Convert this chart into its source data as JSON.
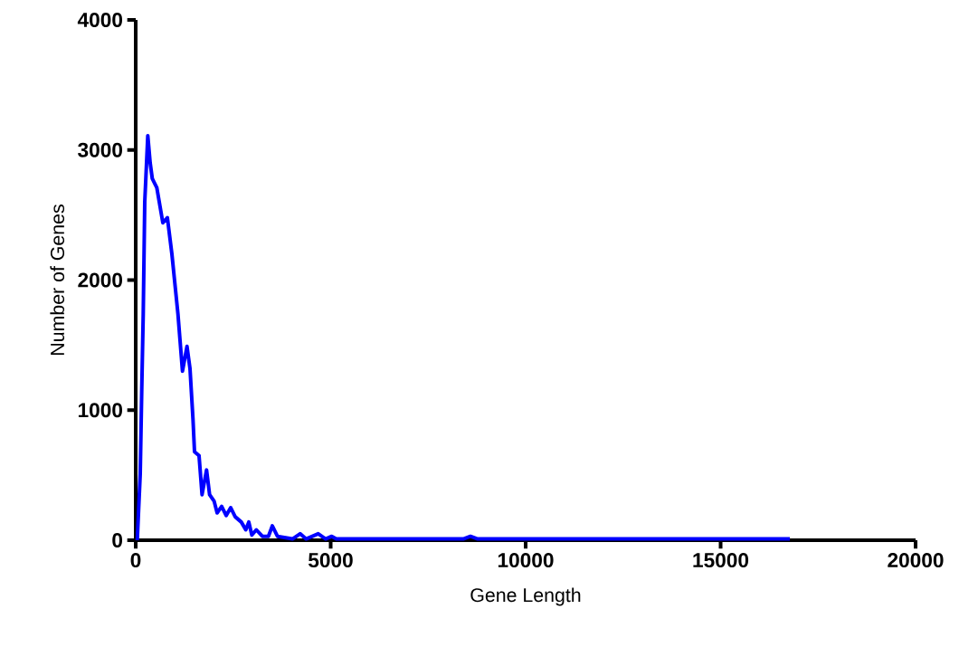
{
  "chart_data": {
    "type": "line",
    "xlabel": "Gene Length",
    "ylabel": "Number of Genes",
    "xlim": [
      0,
      20000
    ],
    "ylim": [
      0,
      4000
    ],
    "xticks": [
      0,
      5000,
      10000,
      15000,
      20000
    ],
    "yticks": [
      0,
      1000,
      2000,
      3000,
      4000
    ],
    "grid": false,
    "marker": "none",
    "line_style": "solid",
    "series": [
      {
        "color": "#0000ff",
        "x": [
          40,
          116,
          155,
          193,
          232,
          310,
          371,
          425,
          541,
          696,
          812,
          928,
          1083,
          1199,
          1315,
          1392,
          1469,
          1508,
          1624,
          1701,
          1817,
          1895,
          2011,
          2088,
          2204,
          2320,
          2436,
          2552,
          2707,
          2823,
          2900,
          2978,
          3093,
          3248,
          3403,
          3503,
          3635,
          4021,
          4216,
          4369,
          4680,
          4872,
          5027,
          5143,
          8400,
          8585,
          8770,
          16775
        ],
        "values": [
          0,
          510,
          1160,
          1740,
          2600,
          3110,
          2900,
          2780,
          2710,
          2440,
          2480,
          2200,
          1740,
          1300,
          1490,
          1320,
          930,
          680,
          650,
          350,
          540,
          350,
          300,
          210,
          260,
          190,
          250,
          180,
          140,
          80,
          140,
          40,
          80,
          30,
          30,
          110,
          30,
          10,
          50,
          10,
          50,
          10,
          30,
          10,
          10,
          30,
          10,
          10
        ]
      }
    ]
  }
}
